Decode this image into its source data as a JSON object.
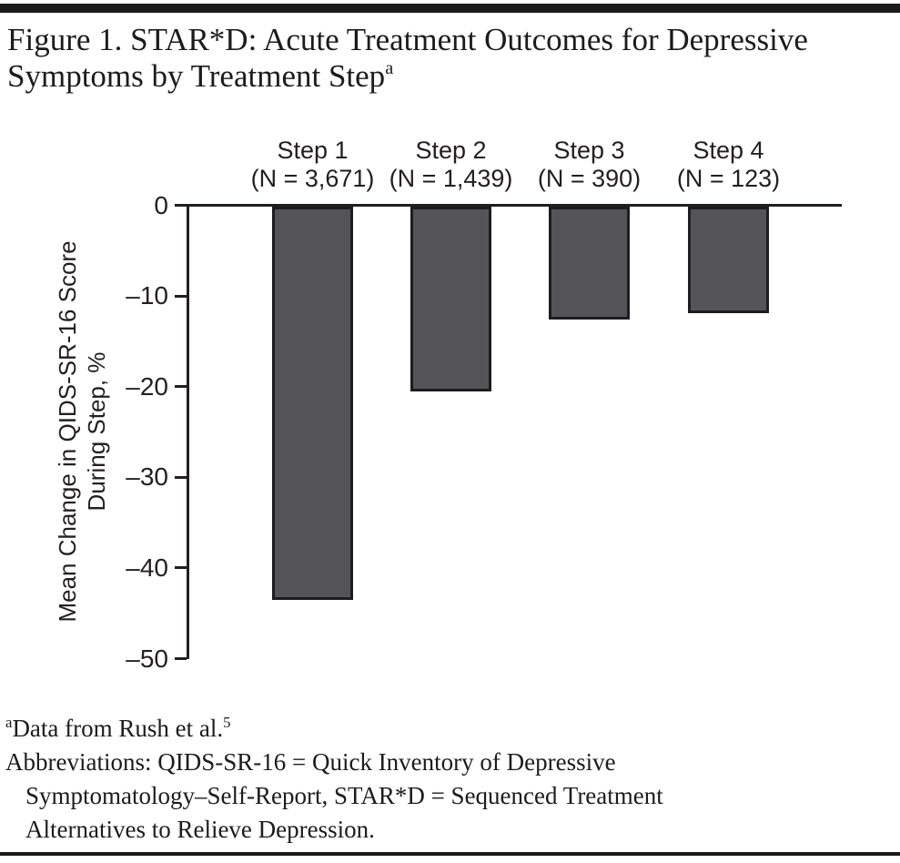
{
  "title": {
    "line1": "Figure 1. STAR*D: Acute Treatment Outcomes for Depressive",
    "line2": "Symptoms by Treatment Step",
    "superscript": "a"
  },
  "chart_data": {
    "type": "bar",
    "title": "STAR*D: Acute Treatment Outcomes for Depressive Symptoms by Treatment Step",
    "categories": [
      "Step 1",
      "Step 2",
      "Step 3",
      "Step 4"
    ],
    "n_labels": [
      "(N = 3,671)",
      "(N = 1,439)",
      "(N = 390)",
      "(N = 123)"
    ],
    "values": [
      -43.4,
      -20.4,
      -12.4,
      -11.7
    ],
    "ylabel": "Mean Change in QIDS-SR-16 Score During Step, %",
    "ylabel_line1": "Mean Change in QIDS-SR-16 Score",
    "ylabel_line2": "During Step, %",
    "ylim": [
      -50,
      0
    ],
    "yticks": [
      0,
      -10,
      -20,
      -30,
      -40,
      -50
    ],
    "ytick_labels": [
      "0",
      "–10",
      "–20",
      "–30",
      "–40",
      "–50"
    ],
    "grid": false,
    "legend": false,
    "bar_color": "#545456",
    "bar_border_color": "#1d1d1f",
    "axis_color": "#231f20"
  },
  "footnotes": {
    "source_super": "a",
    "source_text": "Data from Rush et al.",
    "source_ref": "5",
    "abbrev_line1": "Abbreviations: QIDS-SR-16 = Quick Inventory of Depressive",
    "abbrev_line2": "Symptomatology–Self-Report, STAR*D = Sequenced Treatment",
    "abbrev_line3": "Alternatives to Relieve Depression."
  }
}
